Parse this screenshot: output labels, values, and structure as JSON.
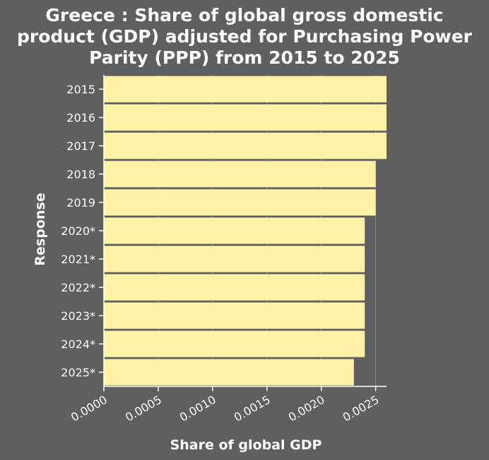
{
  "chart_data": {
    "type": "bar",
    "orientation": "horizontal",
    "title": "Greece : Share of global gross domestic product (GDP) adjusted for Purchasing Power Parity (PPP) from 2015 to 2025",
    "title_lines": [
      "Greece : Share of global gross domestic",
      "product (GDP) adjusted for Purchasing Power",
      "Parity (PPP) from 2015 to 2025"
    ],
    "xlabel": "Share of global GDP",
    "ylabel": "Response",
    "categories": [
      "2015",
      "2016",
      "2017",
      "2018",
      "2019",
      "2020*",
      "2021*",
      "2022*",
      "2023*",
      "2024*",
      "2025*"
    ],
    "values": [
      0.0026,
      0.0026,
      0.0026,
      0.0025,
      0.0025,
      0.0024,
      0.0024,
      0.0024,
      0.0024,
      0.0024,
      0.0023
    ],
    "xlim": [
      0,
      0.0026
    ],
    "xticks": [
      "0.0000",
      "0.0005",
      "0.0010",
      "0.0015",
      "0.0020",
      "0.0025"
    ],
    "grid": "vertical",
    "colors": {
      "background": "#5f5f5f",
      "bar": "#fdf1a6",
      "grid": "#8a8a8a",
      "text": "#ffffff"
    }
  }
}
